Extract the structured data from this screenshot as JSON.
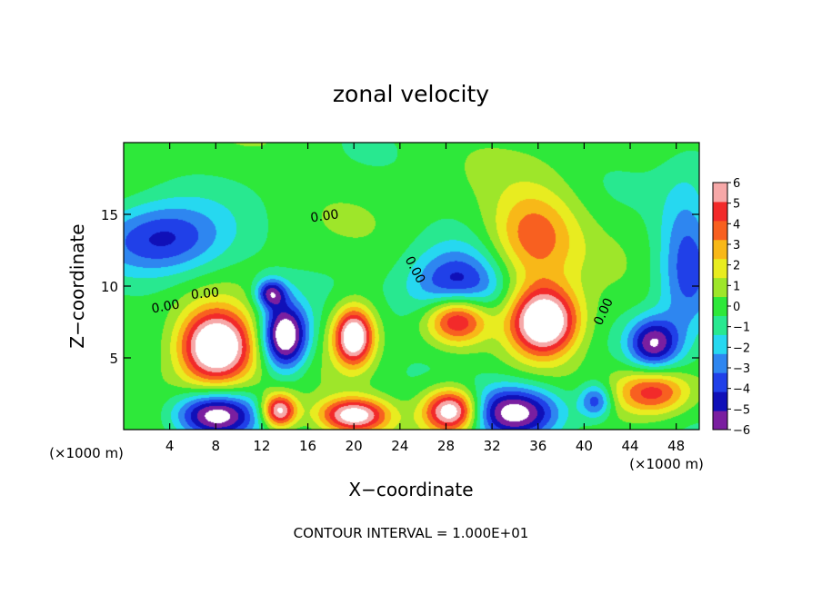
{
  "chart_data": {
    "type": "heatmap",
    "title": "zonal velocity",
    "xlabel": "X−coordinate",
    "ylabel": "Z−coordinate",
    "x_unit": "(×1000 m)",
    "z_unit": "(×1000 m)",
    "footer": "CONTOUR INTERVAL = 1.000E+01",
    "xlim": [
      0,
      50
    ],
    "ylim": [
      0,
      20
    ],
    "x_ticks": [
      4,
      8,
      12,
      16,
      20,
      24,
      28,
      32,
      36,
      40,
      44,
      48
    ],
    "x_tick_labels": [
      "4",
      "8",
      "12",
      "16",
      "20",
      "24",
      "28",
      "32",
      "36",
      "40",
      "44",
      "48"
    ],
    "y_ticks": [
      5,
      10,
      15
    ],
    "y_tick_labels": [
      "5",
      "10",
      "15"
    ],
    "colorbar": {
      "min": -6,
      "max": 6,
      "tick_values": [
        6,
        5,
        4,
        3,
        2,
        1,
        0,
        -1,
        -2,
        -3,
        -4,
        -5,
        -6
      ],
      "tick_labels": [
        "6",
        "5",
        "4",
        "3",
        "2",
        "1",
        "0",
        "−1",
        "−2",
        "−3",
        "−4",
        "−5",
        "−6"
      ],
      "colors": [
        "#7a1fa0",
        "#1010b8",
        "#2040e8",
        "#2e86f0",
        "#26d8f0",
        "#28e890",
        "#2ee83a",
        "#9ee62a",
        "#e8ec20",
        "#f8b818",
        "#f86020",
        "#f22a2a",
        "#f6a8a8"
      ]
    },
    "contour_labels": [
      {
        "text": "0.00",
        "x": 17.5,
        "y": 14.6,
        "rotate": -8
      },
      {
        "text": "0.00",
        "x": 3.7,
        "y": 8.3,
        "rotate": -10
      },
      {
        "text": "0.00",
        "x": 7.1,
        "y": 9.2,
        "rotate": -5
      },
      {
        "text": "0.00",
        "x": 25.0,
        "y": 11.0,
        "rotate": 62
      },
      {
        "text": "0.00",
        "x": 42.0,
        "y": 8.1,
        "rotate": -65
      }
    ],
    "features": [
      {
        "kind": "positive",
        "x": 8,
        "z": 5.8,
        "rx": 3.2,
        "rz": 2.6,
        "amp": 9
      },
      {
        "kind": "positive",
        "x": 20,
        "z": 6.5,
        "rx": 1.7,
        "rz": 2.0,
        "amp": 8
      },
      {
        "kind": "positive",
        "x": 29,
        "z": 7.8,
        "rx": 2.8,
        "rz": 1.8,
        "amp": 8
      },
      {
        "kind": "positive",
        "x": 36.5,
        "z": 7.5,
        "rx": 3.0,
        "rz": 2.4,
        "amp": 9
      },
      {
        "kind": "positive",
        "x": 35.5,
        "z": 13.5,
        "rx": 3.8,
        "rz": 3.2,
        "amp": 4
      },
      {
        "kind": "positive",
        "x": 28.5,
        "z": 1.3,
        "rx": 2.4,
        "rz": 1.5,
        "amp": 8
      },
      {
        "kind": "positive",
        "x": 20,
        "z": 1.0,
        "rx": 3.0,
        "rz": 1.2,
        "amp": 7
      },
      {
        "kind": "positive",
        "x": 46,
        "z": 2.6,
        "rx": 3.3,
        "rz": 1.6,
        "amp": 5
      },
      {
        "kind": "positive",
        "x": 13.5,
        "z": 1.3,
        "rx": 1.5,
        "rz": 1.2,
        "amp": 7
      },
      {
        "kind": "negative",
        "x": 14,
        "z": 6.5,
        "rx": 2.0,
        "rz": 2.3,
        "amp": 8
      },
      {
        "kind": "negative",
        "x": 29,
        "z": 9.5,
        "rx": 4.0,
        "rz": 2.8,
        "amp": 6
      },
      {
        "kind": "negative",
        "x": 46,
        "z": 6.0,
        "rx": 2.2,
        "rz": 1.8,
        "amp": 6
      },
      {
        "kind": "negative",
        "x": 8,
        "z": 1.0,
        "rx": 3.5,
        "rz": 1.6,
        "amp": 7
      },
      {
        "kind": "negative",
        "x": 34,
        "z": 1.2,
        "rx": 4.0,
        "rz": 1.8,
        "amp": 7
      },
      {
        "kind": "negative",
        "x": 3.5,
        "z": 13.2,
        "rx": 5.5,
        "rz": 2.6,
        "amp": 4.5
      },
      {
        "kind": "negative",
        "x": 49,
        "z": 11.5,
        "rx": 2.5,
        "rz": 6.0,
        "amp": 3.5
      },
      {
        "kind": "negative",
        "x": 41,
        "z": 2.0,
        "rx": 1.4,
        "rz": 1.2,
        "amp": 4
      },
      {
        "kind": "negative",
        "x": 12.8,
        "z": 9.5,
        "rx": 1.3,
        "rz": 1.0,
        "amp": 5
      }
    ]
  }
}
